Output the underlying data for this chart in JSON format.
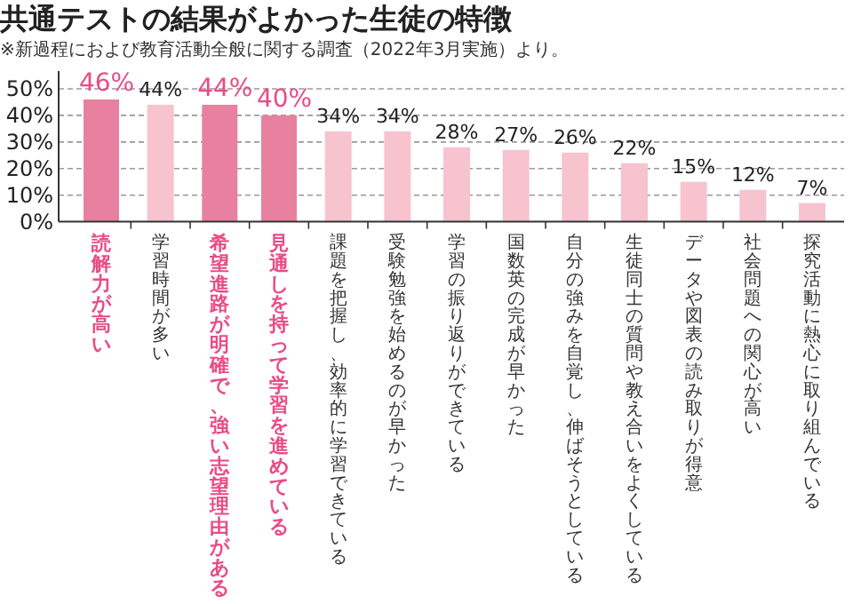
{
  "chart_data": {
    "type": "bar",
    "title": "共通テストの結果がよかった生徒の特徴",
    "subtitle": "※新過程におよび教育活動全般に関する調査（2022年3月実施）より。",
    "categories": [
      "読解力が高い",
      "学習時間が多い",
      "希望進路が明確で、強い志望理由がある",
      "見通しを持って学習を進めている",
      "課題を把握し、効率的に学習できている",
      "受験勉強を始めるのが早かった",
      "学習の振り返りができている",
      "国数英の完成が早かった",
      "自分の強みを自覚し、伸ばそうとしている",
      "生徒同士の質問や教え合いをよくしている",
      "データや図表の読み取りが得意",
      "社会問題への関心が高い",
      "探究活動に熱心に取り組んでいる"
    ],
    "values": [
      46,
      44,
      44,
      40,
      34,
      34,
      28,
      27,
      26,
      22,
      15,
      12,
      7
    ],
    "colors": [
      "#e8819f",
      "#f6c3cf",
      "#e8819f",
      "#e8819f",
      "#f6c3cf",
      "#f6c3cf",
      "#f6c3cf",
      "#f6c3cf",
      "#f6c3cf",
      "#f6c3cf",
      "#f6c3cf",
      "#f6c3cf",
      "#f6c3cf"
    ],
    "value_labels": [
      "46%",
      "44%",
      "44%",
      "40%",
      "34%",
      "34%",
      "28%",
      "27%",
      "26%",
      "22%",
      "15%",
      "12%",
      "7%"
    ],
    "ylim": [
      0,
      50
    ],
    "yticks": [
      {
        "value": 0,
        "label": "0%"
      },
      {
        "value": 10,
        "label": "10%"
      },
      {
        "value": 20,
        "label": "20%"
      },
      {
        "value": 30,
        "label": "30%"
      },
      {
        "value": 40,
        "label": "40%"
      },
      {
        "value": 50,
        "label": "50%"
      }
    ],
    "grid": "y"
  }
}
